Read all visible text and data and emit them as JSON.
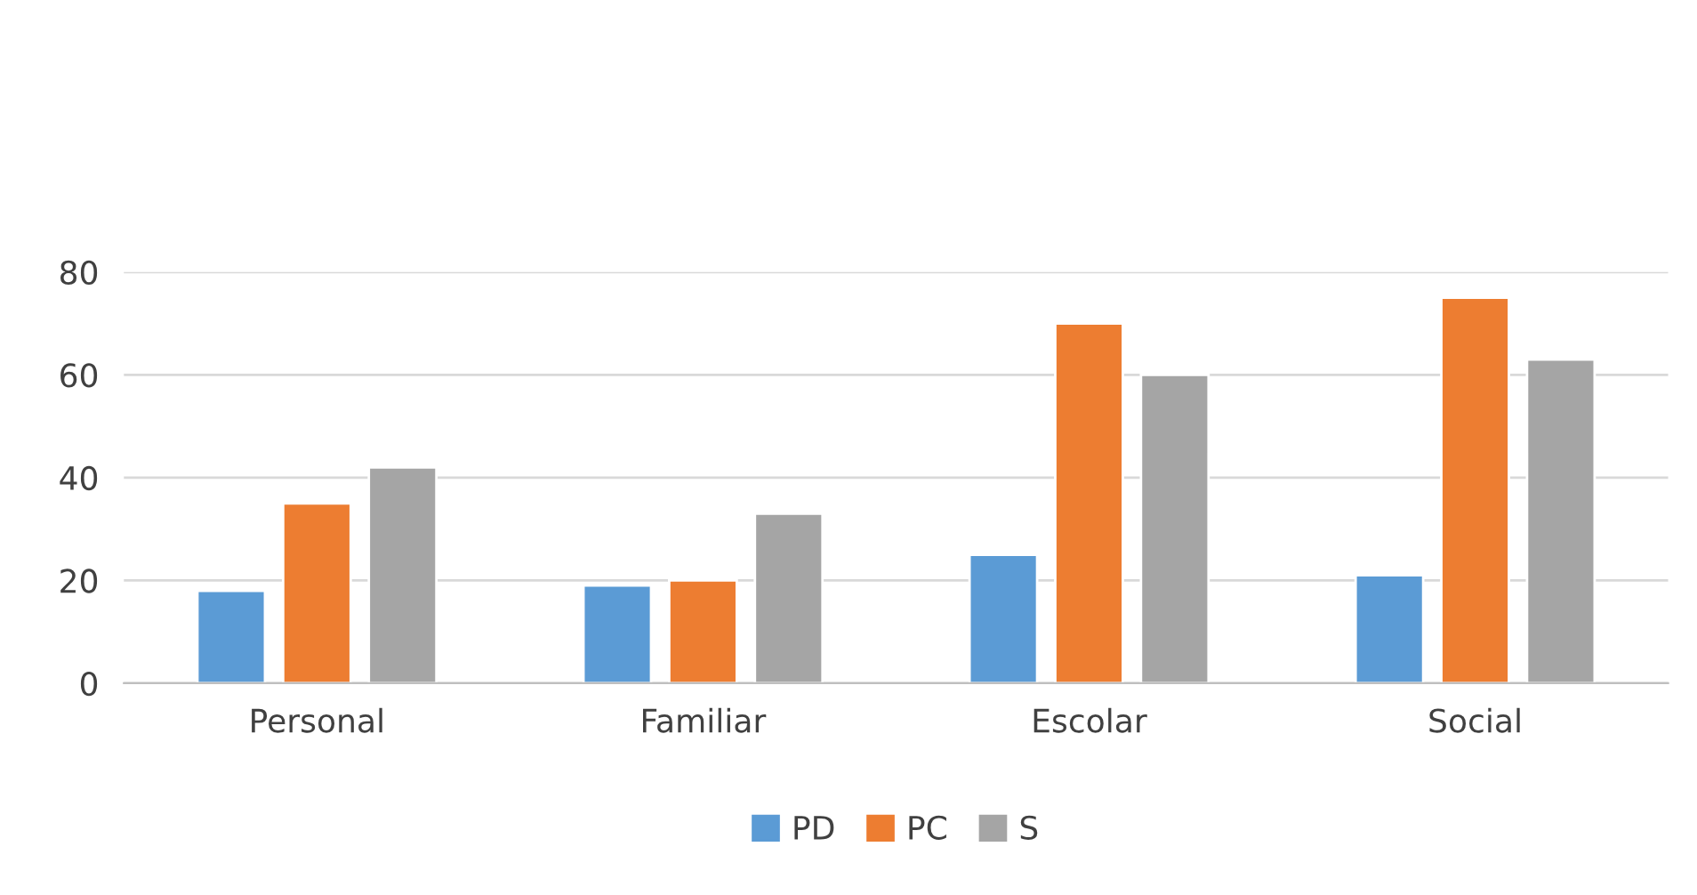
{
  "chart_data": {
    "type": "bar",
    "categories": [
      "Personal",
      "Familiar",
      "Escolar",
      "Social"
    ],
    "series": [
      {
        "name": "PD",
        "color": "#5b9bd5",
        "values": [
          18,
          19,
          25,
          21
        ]
      },
      {
        "name": "PC",
        "color": "#ed7d31",
        "values": [
          35,
          20,
          70,
          75
        ]
      },
      {
        "name": "S",
        "color": "#a5a5a5",
        "values": [
          42,
          33,
          60,
          63
        ]
      }
    ],
    "ylim": [
      0,
      80
    ],
    "yticks": [
      0,
      20,
      40,
      60,
      80
    ],
    "grid": "y",
    "legend": "bottom"
  }
}
